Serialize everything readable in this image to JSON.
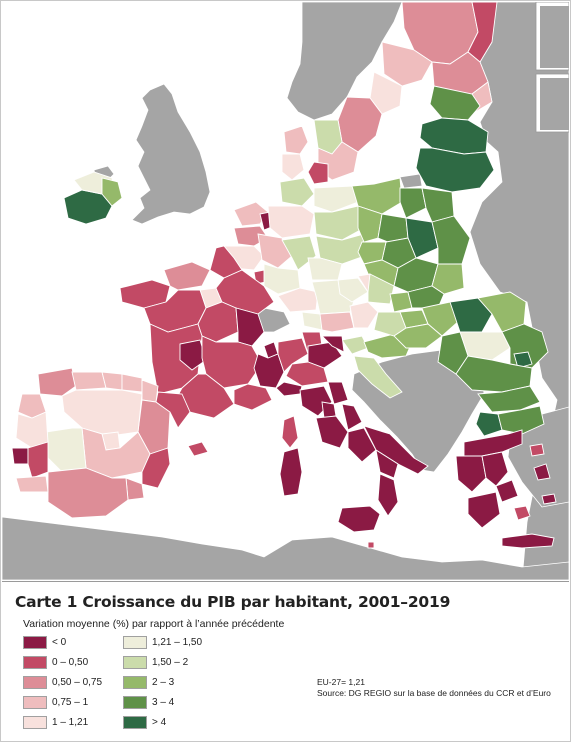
{
  "map": {
    "title": "Carte 1 Croissance du PIB par habitant, 2001–2019",
    "legend_title": "Variation moyenne (%) par rapport à l’année précédente",
    "legend": [
      {
        "label": "< 0",
        "color": "#8b1a44"
      },
      {
        "label": "0 – 0,50",
        "color": "#c24a65"
      },
      {
        "label": "0,50 – 0,75",
        "color": "#dd8d97"
      },
      {
        "label": "0,75 – 1",
        "color": "#efbdbe"
      },
      {
        "label": "1 – 1,21",
        "color": "#f8e1dd"
      },
      {
        "label": "1,21 – 1,50",
        "color": "#eeeedb"
      },
      {
        "label": "1,50 – 2",
        "color": "#cbdcab"
      },
      {
        "label": "2 – 3",
        "color": "#95b96a"
      },
      {
        "label": "3 – 4",
        "color": "#5f9148"
      },
      {
        "label": "> 4",
        "color": "#2e6a44"
      }
    ],
    "eu_average": "EU-27= 1,21",
    "source": "Source: DG REGIO sur la base de données du CCR et d’Euro",
    "colors": {
      "sea": "#ffffff",
      "non_eu_land": "#a5a5a5",
      "border": "#ffffff"
    }
  }
}
